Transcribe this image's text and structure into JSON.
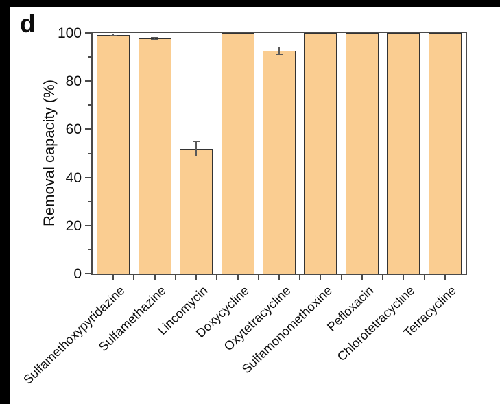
{
  "panel_label": "d",
  "colors": {
    "surround": "#000000",
    "plot_background": "#ffffff",
    "frame": "#4a4a4a",
    "tick": "#4a4a4a",
    "text": "#0d0d0d",
    "bar_fill": "#FACD91",
    "bar_edge": "#333333",
    "error_bar": "#595959"
  },
  "chart_data": {
    "type": "bar",
    "title": "",
    "xlabel": "",
    "ylabel": "Removal capacity (%)",
    "ylim": [
      0,
      100
    ],
    "grid": false,
    "legend": "none",
    "y_major_ticks": [
      0,
      20,
      40,
      60,
      80,
      100
    ],
    "y_minor_ticks": [
      10,
      30,
      50,
      70,
      90
    ],
    "x_tick_label_rotation_deg": -44,
    "categories": [
      "Sulfamethoxypyridazine",
      "Sulfamethazine",
      "Lincomycin",
      "Doxycycline",
      "Oxytetracycline",
      "Sulfamonomethoxine",
      "Pefloxacin",
      "Chlorotetracycline",
      "Tetracycline"
    ],
    "values": [
      99.2,
      97.6,
      51.8,
      100,
      92.6,
      100,
      100,
      100,
      100
    ],
    "errors": [
      0.4,
      0.5,
      3.0,
      0,
      1.5,
      0,
      0,
      0,
      0
    ]
  }
}
